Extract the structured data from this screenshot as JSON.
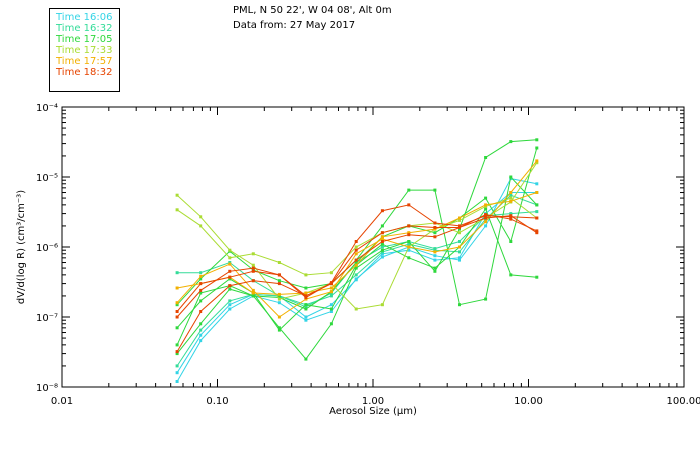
{
  "header": {
    "location": "PML, N 50 22', W 04 08', Alt 0m",
    "data_from": "Data from: 27 May 2017"
  },
  "legend": [
    {
      "label": "Time 16:06",
      "color": "#33d4e6"
    },
    {
      "label": "Time 16:32",
      "color": "#33dc99"
    },
    {
      "label": "Time 17:05",
      "color": "#2ed83c"
    },
    {
      "label": "Time 17:33",
      "color": "#aadc33"
    },
    {
      "label": "Time 17:57",
      "color": "#f2b000"
    },
    {
      "label": "Time 18:32",
      "color": "#e64400"
    }
  ],
  "chart_data": {
    "type": "line",
    "xlabel": "Aerosol Size (µm)",
    "ylabel": "dV/d(log R) (cm³/cm⁻³)",
    "x_scale": "log",
    "y_scale": "log",
    "xlim": [
      0.01,
      100
    ],
    "ylim": [
      1e-08,
      0.0001
    ],
    "x_ticks": [
      "0.01",
      "0.10",
      "1.00",
      "10.00",
      "100.00"
    ],
    "y_ticks": [
      "10⁻⁸",
      "10⁻⁷",
      "10⁻⁶",
      "10⁻⁵",
      "10⁻⁴"
    ],
    "grid": false,
    "x": [
      0.055,
      0.078,
      0.12,
      0.17,
      0.25,
      0.37,
      0.54,
      0.78,
      1.15,
      1.7,
      2.5,
      3.6,
      5.3,
      7.7,
      11.3
    ],
    "series": [
      {
        "color": "#33d4e6",
        "values": [
          1.2e-08,
          4.6e-08,
          1.3e-07,
          2e-07,
          1.6e-07,
          9e-08,
          1.2e-07,
          3.5e-07,
          7.2e-07,
          1e-06,
          7.5e-07,
          6.5e-07,
          2e-06,
          9.5e-06,
          8e-06
        ]
      },
      {
        "color": "#33d4e6",
        "values": [
          1.6e-08,
          5.5e-08,
          1.5e-07,
          2.1e-07,
          2e-07,
          1e-07,
          1.5e-07,
          3.4e-07,
          8e-07,
          9e-07,
          6.5e-07,
          7e-07,
          3e-06,
          6e-06,
          6e-06
        ]
      },
      {
        "color": "#33dc99",
        "values": [
          2e-08,
          6.5e-08,
          1.7e-07,
          2.1e-07,
          2e-07,
          1.5e-07,
          2e-07,
          4e-07,
          8.5e-07,
          1.1e-06,
          9e-07,
          8.5e-07,
          2.5e-06,
          5.5e-06,
          4e-06
        ]
      },
      {
        "color": "#33dc99",
        "values": [
          4.3e-07,
          4.3e-07,
          6e-07,
          3.3e-07,
          2e-07,
          1.4e-07,
          2.2e-07,
          6e-07,
          1e-06,
          1.2e-06,
          9.5e-07,
          1.2e-06,
          2.8e-06,
          3e-06,
          3.2e-06
        ]
      },
      {
        "color": "#2ed83c",
        "values": [
          3e-08,
          8e-08,
          2.5e-07,
          2e-07,
          7e-08,
          2.5e-08,
          8e-08,
          5e-07,
          9e-07,
          1.2e-06,
          4.5e-07,
          1.8e-06,
          1.9e-05,
          3.2e-05,
          3.4e-05
        ]
      },
      {
        "color": "#2ed83c",
        "values": [
          1.5e-07,
          3.5e-07,
          8.7e-07,
          4.7e-07,
          3.3e-07,
          2.6e-07,
          3e-07,
          6.5e-07,
          2e-06,
          6.5e-06,
          6.5e-06,
          1.5e-07,
          1.8e-07,
          1e-05,
          4e-06
        ]
      },
      {
        "color": "#2ed83c",
        "values": [
          7e-08,
          1.7e-07,
          3.5e-07,
          2.2e-07,
          6.5e-08,
          1.5e-07,
          1.3e-07,
          5.5e-07,
          1.1e-06,
          7e-07,
          5e-07,
          1e-06,
          3.5e-06,
          4e-07,
          3.7e-07
        ]
      },
      {
        "color": "#2ed83c",
        "values": [
          4e-08,
          2.2e-07,
          2.8e-07,
          2e-07,
          1.9e-07,
          1.3e-07,
          2.3e-07,
          6e-07,
          1.4e-06,
          2e-06,
          1.6e-06,
          2.6e-06,
          5e-06,
          1.2e-06,
          2.6e-05
        ]
      },
      {
        "color": "#aadc33",
        "values": [
          5.5e-06,
          2.7e-06,
          9e-07,
          5.5e-07,
          1.8e-07,
          2.2e-07,
          3e-07,
          1.3e-07,
          1.5e-07,
          1e-06,
          1.8e-06,
          2.4e-06,
          3.8e-06,
          5e-06,
          2.6e-06
        ]
      },
      {
        "color": "#aadc33",
        "values": [
          3.4e-06,
          2e-06,
          7e-07,
          8e-07,
          6e-07,
          4e-07,
          4.3e-07,
          1e-06,
          1.6e-06,
          2e-06,
          2.2e-06,
          1.6e-06,
          2.6e-06,
          4.4e-06,
          1.6e-05
        ]
      },
      {
        "color": "#f2b000",
        "values": [
          1.6e-07,
          3.8e-07,
          5.7e-07,
          2.4e-07,
          1e-07,
          1.8e-07,
          2.3e-07,
          8e-07,
          1.3e-06,
          1e-06,
          8.5e-07,
          1e-06,
          2.3e-06,
          6e-06,
          1.7e-05
        ]
      },
      {
        "color": "#f2b000",
        "values": [
          2.6e-07,
          3e-07,
          3.7e-07,
          2.2e-07,
          2.1e-07,
          2.2e-07,
          2.6e-07,
          5.5e-07,
          1.4e-06,
          1.6e-06,
          1.8e-06,
          2.6e-06,
          4e-06,
          4.5e-06,
          6e-06
        ]
      },
      {
        "color": "#e64400",
        "values": [
          3.2e-08,
          1.2e-07,
          2.8e-07,
          3.3e-07,
          3e-07,
          2e-07,
          3e-07,
          6.5e-07,
          1.2e-06,
          1.5e-06,
          1.4e-06,
          1.9e-06,
          2.9e-06,
          2.5e-06,
          1.7e-06
        ]
      },
      {
        "color": "#e64400",
        "values": [
          1e-07,
          2.4e-07,
          4.5e-07,
          5e-07,
          4e-07,
          1.9e-07,
          3.1e-07,
          1.2e-06,
          3.3e-06,
          4e-06,
          2.2e-06,
          2e-06,
          2.8e-06,
          2.7e-06,
          2.6e-06
        ]
      },
      {
        "color": "#e64400",
        "values": [
          1.2e-07,
          3e-07,
          3.7e-07,
          4.5e-07,
          4e-07,
          2e-07,
          3e-07,
          9e-07,
          1.6e-06,
          2e-06,
          1.9e-06,
          1.9e-06,
          2.6e-06,
          2.8e-06,
          1.6e-06
        ]
      }
    ]
  }
}
